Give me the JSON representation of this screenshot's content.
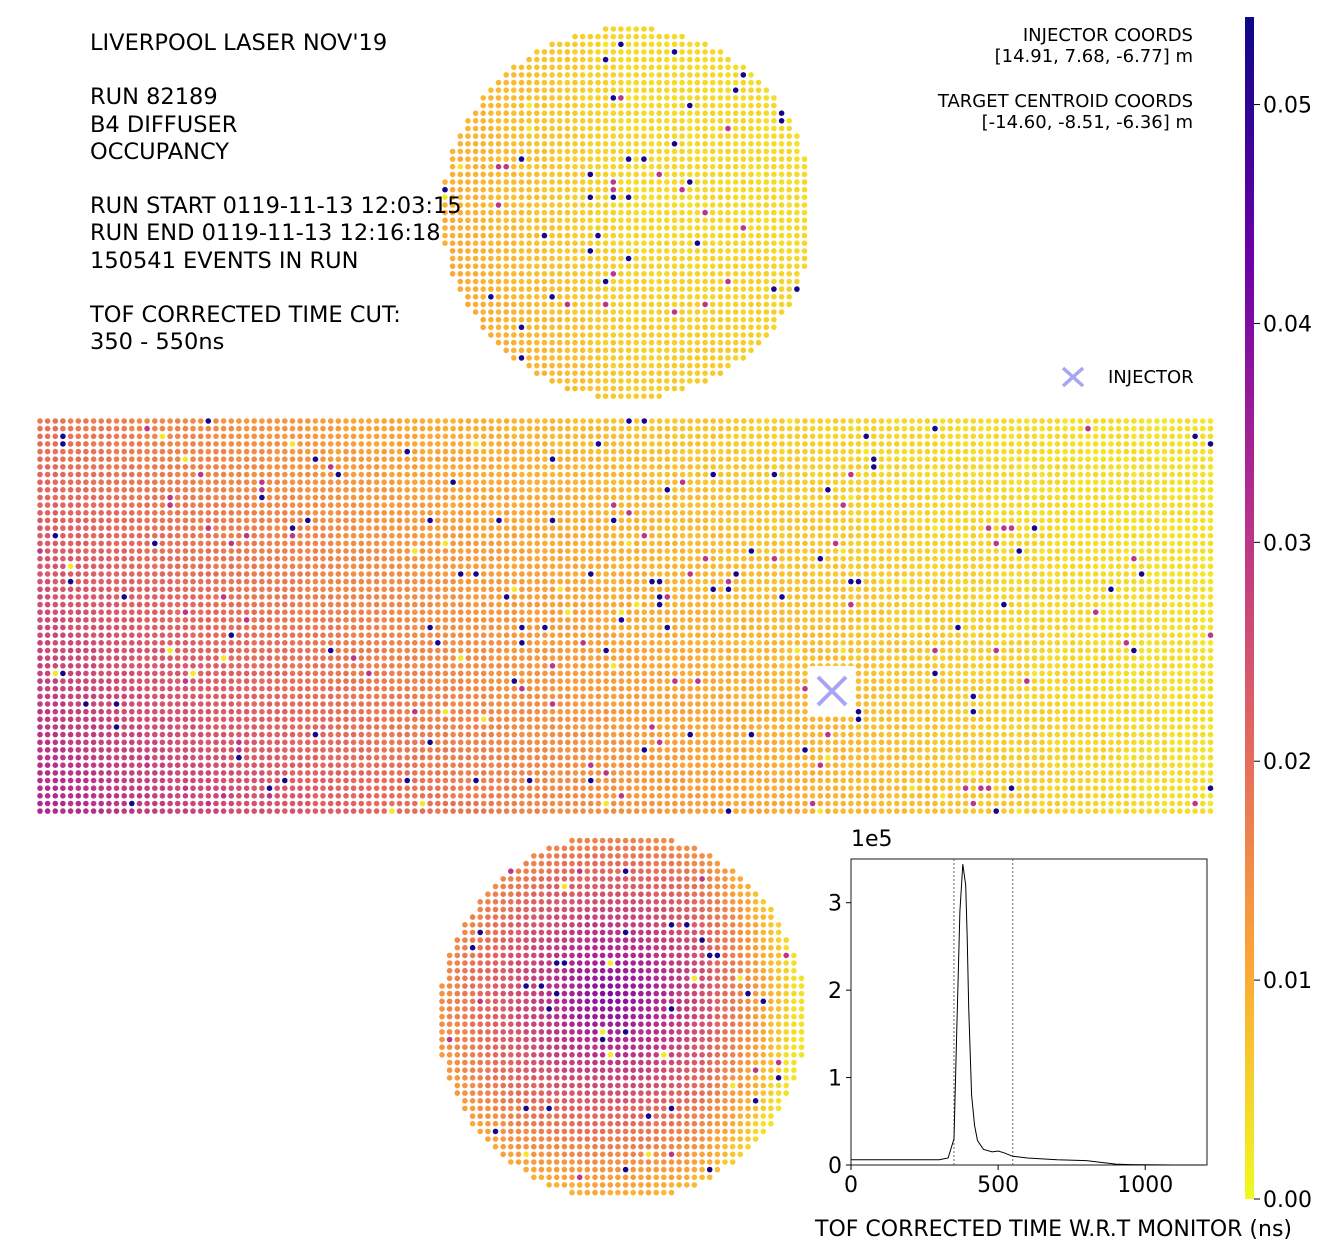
{
  "info": {
    "title": "LIVERPOOL LASER NOV'19",
    "run": "RUN 82189",
    "diffuser": "B4 DIFFUSER",
    "metric": "OCCUPANCY",
    "run_start": "RUN START 0119-11-13 12:03:15",
    "run_end": "RUN END 0119-11-13 12:16:18",
    "events": "150541 EVENTS IN RUN",
    "time_cut_label": "TOF CORRECTED TIME CUT:",
    "time_cut_value": "350 - 550ns"
  },
  "coords": {
    "injector_label": "INJECTOR COORDS",
    "injector_value": "[14.91, 7.68, -6.77] m",
    "target_label": "TARGET CENTROID COORDS",
    "target_value": "[-14.60, -8.51, -6.36] m"
  },
  "legend": {
    "injector": "INJECTOR",
    "injector_color": "#a6a6f5"
  },
  "colors": {
    "plasma": [
      "#0d0887",
      "#6a00a8",
      "#b12a90",
      "#e16462",
      "#fca636",
      "#f0f921"
    ]
  },
  "chart_data": [
    {
      "type": "heatmap",
      "title": "OCCUPANCY",
      "description_of_values": "PMT occupancy on unrolled detector (top cap, barrel, bottom cap)",
      "colorbar": {
        "ticks": [
          "0.00",
          "0.01",
          "0.02",
          "0.03",
          "0.04",
          "0.05"
        ],
        "range": [
          0,
          0.054
        ],
        "colormap": "plasma"
      },
      "regions": [
        {
          "name": "top-cap",
          "occupancy_range": [
            0.002,
            0.012
          ]
        },
        {
          "name": "barrel",
          "occupancy_range": [
            0.003,
            0.03
          ],
          "gradient": "high toward left/bottom, low toward right/top"
        },
        {
          "name": "bottom-cap",
          "occupancy_range": [
            0.012,
            0.042
          ],
          "peak": "centre-left"
        }
      ],
      "injector_marker": "x"
    },
    {
      "type": "line",
      "xlabel": "TOF CORRECTED TIME W.R.T MONITOR (ns)",
      "ylabel": "",
      "y_multiplier": "1e5",
      "xlim": [
        0,
        1210
      ],
      "ylim": [
        0,
        3.5
      ],
      "x_ticks": [
        "0",
        "500",
        "1000"
      ],
      "y_ticks": [
        "0",
        "1",
        "2",
        "3"
      ],
      "cut_lines": [
        350,
        550
      ],
      "series": [
        {
          "x": [
            0,
            100,
            200,
            300,
            330,
            350,
            360,
            370,
            380,
            390,
            395,
            400,
            410,
            420,
            430,
            450,
            480,
            500,
            520,
            550,
            600,
            700,
            800,
            850,
            900,
            950,
            1000,
            1100,
            1200
          ],
          "values": [
            0.06,
            0.06,
            0.06,
            0.06,
            0.08,
            0.3,
            1.6,
            2.9,
            3.44,
            3.2,
            2.6,
            1.8,
            0.8,
            0.45,
            0.28,
            0.18,
            0.15,
            0.16,
            0.14,
            0.1,
            0.08,
            0.06,
            0.05,
            0.03,
            0.01,
            0.005,
            0.002,
            0.0,
            0.0
          ]
        }
      ]
    }
  ]
}
